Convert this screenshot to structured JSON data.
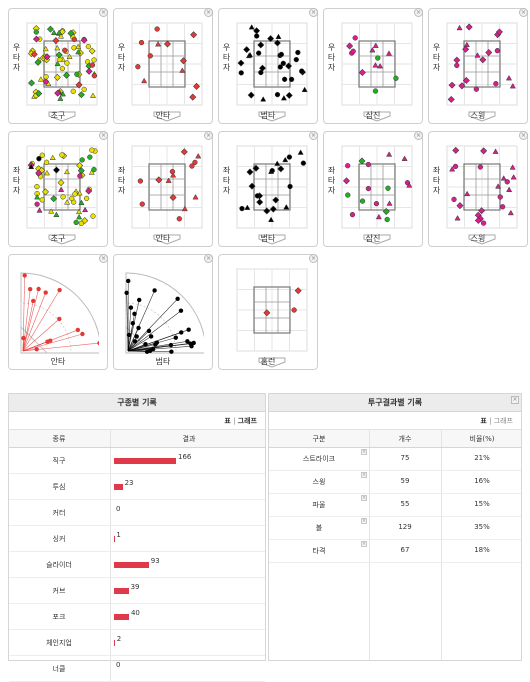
{
  "thumbnails": [
    {
      "side": "우타자",
      "caption": "초구"
    },
    {
      "side": "우타자",
      "caption": "안타"
    },
    {
      "side": "우타자",
      "caption": "범타"
    },
    {
      "side": "우타자",
      "caption": "삼진"
    },
    {
      "side": "우타자",
      "caption": "스윙"
    },
    {
      "side": "좌타자",
      "caption": "초구"
    },
    {
      "side": "좌타자",
      "caption": "안타"
    },
    {
      "side": "좌타자",
      "caption": "범타"
    },
    {
      "side": "좌타자",
      "caption": "삼진"
    },
    {
      "side": "좌타자",
      "caption": "스윙"
    },
    {
      "side": "",
      "caption": "안타"
    },
    {
      "side": "",
      "caption": "범타"
    },
    {
      "side": "",
      "caption": "홈런"
    }
  ],
  "pitch_panel": {
    "title": "구종별 기록",
    "view_table": "표",
    "view_sep": "|",
    "view_graph": "그래프",
    "col_type": "종류",
    "col_result": "결과",
    "rows": [
      {
        "label": "직구",
        "value": 166
      },
      {
        "label": "투심",
        "value": 23
      },
      {
        "label": "커터",
        "value": 0
      },
      {
        "label": "싱커",
        "value": 1
      },
      {
        "label": "슬라이더",
        "value": 93
      },
      {
        "label": "커브",
        "value": 39
      },
      {
        "label": "포크",
        "value": 40
      },
      {
        "label": "체인지업",
        "value": 2
      },
      {
        "label": "너클",
        "value": 0
      }
    ]
  },
  "result_panel": {
    "title": "투구결과별 기록",
    "view_table": "표",
    "view_sep": "|",
    "view_graph": "그래프",
    "col_type": "구분",
    "col_count": "개수",
    "col_ratio": "비율(%)",
    "rows": [
      {
        "label": "스트라이크",
        "count": "75",
        "ratio": "21%"
      },
      {
        "label": "스윙",
        "count": "59",
        "ratio": "16%"
      },
      {
        "label": "파울",
        "count": "55",
        "ratio": "15%"
      },
      {
        "label": "볼",
        "count": "129",
        "ratio": "35%"
      },
      {
        "label": "타격",
        "count": "67",
        "ratio": "18%"
      }
    ]
  },
  "colors": {
    "bar": "#e0394a",
    "zone_red": "#e53935",
    "zone_yellow": "#e8e000",
    "zone_green": "#22b022",
    "zone_magenta": "#d6208c"
  }
}
